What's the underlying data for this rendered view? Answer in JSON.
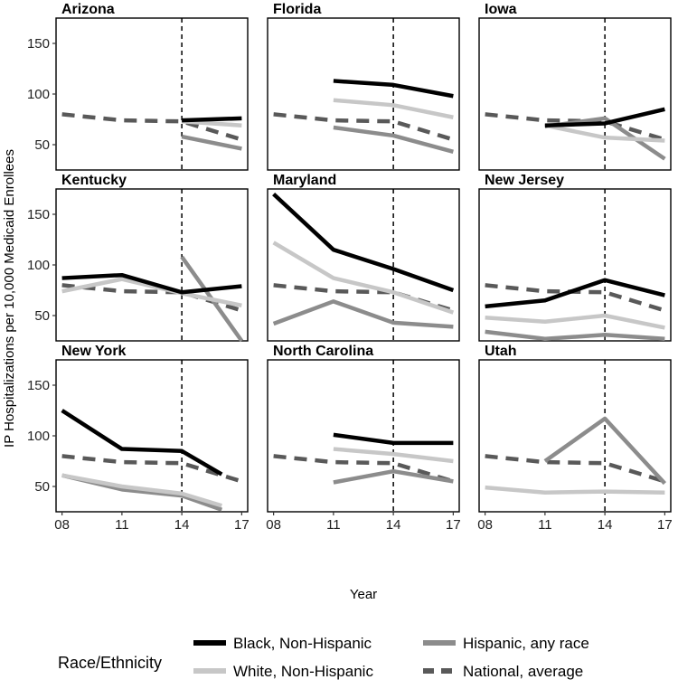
{
  "chart_data": {
    "type": "line",
    "ylabel": "IP Hospitalizations per 10,000 Medicaid Enrollees",
    "xlabel": "Year",
    "x_values": [
      8,
      11,
      14,
      17
    ],
    "x_tick_labels": [
      "08",
      "11",
      "14",
      "17"
    ],
    "y_ticks": [
      50,
      100,
      150
    ],
    "ylim": [
      25,
      175
    ],
    "xlim": [
      7.7,
      17.3
    ],
    "reference_line_x": 14,
    "legend": {
      "title": "Race/Ethnicity",
      "entries": [
        {
          "key": "black",
          "label": "Black, Non-Hispanic",
          "color": "#000000",
          "dashed": false
        },
        {
          "key": "hispanic",
          "label": "Hispanic, any race",
          "color": "#8c8c8c",
          "dashed": false
        },
        {
          "key": "white",
          "label": "White, Non-Hispanic",
          "color": "#c7c7c7",
          "dashed": false
        },
        {
          "key": "national",
          "label": "National, average",
          "color": "#595959",
          "dashed": true
        }
      ]
    },
    "national": {
      "x": [
        8,
        11,
        14,
        17
      ],
      "y": [
        80,
        74,
        73,
        55
      ]
    },
    "panels": [
      {
        "title": "Arizona",
        "series": {
          "black": {
            "x": [
              14,
              17
            ],
            "y": [
              74,
              76
            ]
          },
          "white": {
            "x": [
              14,
              17
            ],
            "y": [
              73,
              69
            ]
          },
          "hispanic": {
            "x": [
              14,
              17
            ],
            "y": [
              58,
              46
            ]
          }
        }
      },
      {
        "title": "Florida",
        "series": {
          "black": {
            "x": [
              11,
              14,
              17
            ],
            "y": [
              113,
              109,
              98
            ]
          },
          "white": {
            "x": [
              11,
              14,
              17
            ],
            "y": [
              94,
              89,
              77
            ]
          },
          "hispanic": {
            "x": [
              11,
              14,
              17
            ],
            "y": [
              67,
              59,
              43
            ]
          }
        }
      },
      {
        "title": "Iowa",
        "series": {
          "black": {
            "x": [
              11,
              14,
              17
            ],
            "y": [
              69,
              71,
              85
            ]
          },
          "white": {
            "x": [
              11,
              14,
              17
            ],
            "y": [
              69,
              57,
              54
            ]
          },
          "hispanic": {
            "x": [
              11,
              14,
              17
            ],
            "y": [
              68,
              76,
              36
            ]
          }
        }
      },
      {
        "title": "Kentucky",
        "series": {
          "black": {
            "x": [
              8,
              11,
              14,
              17
            ],
            "y": [
              87,
              90,
              73,
              79
            ]
          },
          "white": {
            "x": [
              8,
              11,
              14,
              17
            ],
            "y": [
              74,
              86,
              72,
              60
            ]
          },
          "hispanic": {
            "x": [
              14,
              17
            ],
            "y": [
              108,
              25
            ]
          }
        }
      },
      {
        "title": "Maryland",
        "series": {
          "black": {
            "x": [
              8,
              11,
              14,
              17
            ],
            "y": [
              170,
              115,
              96,
              75
            ]
          },
          "white": {
            "x": [
              8,
              11,
              14,
              17
            ],
            "y": [
              122,
              87,
              73,
              53
            ]
          },
          "hispanic": {
            "x": [
              8,
              11,
              14,
              17
            ],
            "y": [
              42,
              64,
              43,
              39
            ]
          }
        }
      },
      {
        "title": "New Jersey",
        "series": {
          "black": {
            "x": [
              8,
              11,
              14,
              17
            ],
            "y": [
              59,
              65,
              85,
              70
            ]
          },
          "white": {
            "x": [
              8,
              11,
              14,
              17
            ],
            "y": [
              48,
              44,
              50,
              38
            ]
          },
          "hispanic": {
            "x": [
              8,
              11,
              14,
              17
            ],
            "y": [
              34,
              27,
              31,
              27
            ]
          }
        }
      },
      {
        "title": "New York",
        "series": {
          "black": {
            "x": [
              8,
              11,
              14,
              16
            ],
            "y": [
              125,
              87,
              85,
              62
            ]
          },
          "white": {
            "x": [
              8,
              11,
              14,
              16
            ],
            "y": [
              61,
              50,
              43,
              31
            ]
          },
          "hispanic": {
            "x": [
              8,
              11,
              14,
              16
            ],
            "y": [
              61,
              47,
              41,
              27
            ]
          }
        }
      },
      {
        "title": "North Carolina",
        "series": {
          "black": {
            "x": [
              11,
              14,
              17
            ],
            "y": [
              101,
              93,
              93
            ]
          },
          "white": {
            "x": [
              11,
              14,
              17
            ],
            "y": [
              87,
              82,
              75
            ]
          },
          "hispanic": {
            "x": [
              11,
              14,
              17
            ],
            "y": [
              54,
              65,
              55
            ]
          }
        }
      },
      {
        "title": "Utah",
        "series": {
          "white": {
            "x": [
              8,
              11,
              14,
              17
            ],
            "y": [
              49,
              44,
              45,
              44
            ]
          },
          "hispanic": {
            "x": [
              11,
              14,
              17
            ],
            "y": [
              75,
              117,
              53
            ]
          }
        }
      }
    ]
  }
}
